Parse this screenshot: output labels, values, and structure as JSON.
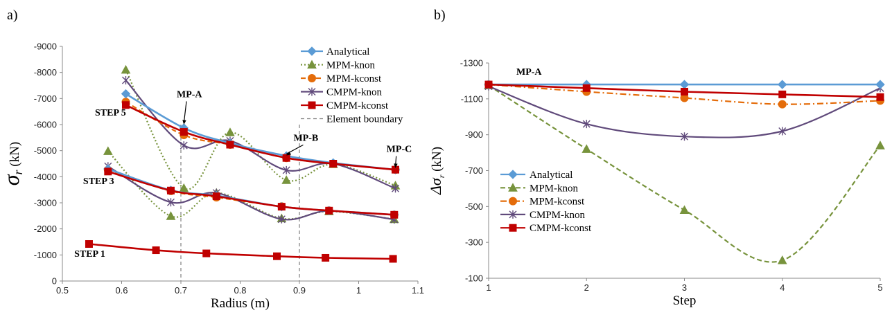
{
  "chart_data": [
    {
      "panel_label": "a)",
      "type": "line",
      "xlabel": "Radius (m)",
      "ylabel": "σr (kN)",
      "xlim": [
        0.5,
        1.1
      ],
      "xticks": [
        0.5,
        0.6,
        0.7,
        0.8,
        0.9,
        1,
        1.1
      ],
      "ylim": [
        0,
        -9000
      ],
      "yticks": [
        0,
        -1000,
        -2000,
        -3000,
        -4000,
        -5000,
        -6000,
        -7000,
        -8000,
        -9000
      ],
      "grid": false,
      "legend_position": "top-right",
      "legend": [
        {
          "label": "Analytical",
          "color": "#5b9bd5",
          "dash": "solid",
          "marker": "diamond"
        },
        {
          "label": "MPM-knon",
          "color": "#77933c",
          "dash": "dotted",
          "marker": "triangle"
        },
        {
          "label": "MPM-kconst",
          "color": "#e46c0a",
          "dash": "dash",
          "marker": "circle"
        },
        {
          "label": "CMPM-knon",
          "color": "#604a7b",
          "dash": "solid",
          "marker": "star"
        },
        {
          "label": "CMPM-kconst",
          "color": "#c00000",
          "dash": "solid",
          "marker": "square"
        },
        {
          "label": "Element boundary",
          "color": "#7f7f7f",
          "dash": "dash",
          "marker": "none"
        }
      ],
      "element_boundaries": [
        0.7,
        0.9
      ],
      "annotations": [
        {
          "text": "STEP 5",
          "x": 0.555,
          "y": -6350
        },
        {
          "text": "STEP 3",
          "x": 0.535,
          "y": -3720
        },
        {
          "text": "STEP 1",
          "x": 0.52,
          "y": -930
        },
        {
          "text": "MP-A",
          "x": 0.693,
          "y": -7050,
          "arrow_to": [
            0.705,
            -6000
          ]
        },
        {
          "text": "MP-B",
          "x": 0.89,
          "y": -5380,
          "arrow_to": [
            0.878,
            -4820
          ]
        },
        {
          "text": "MP-C",
          "x": 1.047,
          "y": -4950,
          "arrow_to": [
            1.062,
            -4330
          ]
        }
      ],
      "series": [
        {
          "name": "Analytical",
          "step": "STEP 5",
          "x": [
            0.607,
            0.705,
            0.783,
            0.878,
            0.957,
            1.062
          ],
          "y": [
            -7180,
            -5870,
            -5290,
            -4800,
            -4530,
            -4270
          ]
        },
        {
          "name": "MPM-knon",
          "step": "STEP 5",
          "x": [
            0.607,
            0.705,
            0.783,
            0.878,
            0.957,
            1.062
          ],
          "y": [
            -8100,
            -3560,
            -5700,
            -3870,
            -4480,
            -3660
          ]
        },
        {
          "name": "MPM-kconst",
          "step": "STEP 5",
          "x": [
            0.607,
            0.705,
            0.783,
            0.878,
            0.957,
            1.062
          ],
          "y": [
            -6870,
            -5600,
            -5230,
            -4720,
            -4500,
            -4270
          ]
        },
        {
          "name": "CMPM-knon",
          "step": "STEP 5",
          "x": [
            0.607,
            0.705,
            0.783,
            0.878,
            0.957,
            1.062
          ],
          "y": [
            -7700,
            -5200,
            -5380,
            -4250,
            -4500,
            -3550
          ]
        },
        {
          "name": "CMPM-kconst",
          "step": "STEP 5",
          "x": [
            0.607,
            0.705,
            0.783,
            0.878,
            0.957,
            1.062
          ],
          "y": [
            -6750,
            -5720,
            -5230,
            -4720,
            -4500,
            -4270
          ]
        },
        {
          "name": "Analytical",
          "step": "STEP 3",
          "x": [
            0.577,
            0.683,
            0.76,
            0.87,
            0.95,
            1.06
          ],
          "y": [
            -4300,
            -3480,
            -3280,
            -2850,
            -2700,
            -2540
          ]
        },
        {
          "name": "MPM-knon",
          "step": "STEP 3",
          "x": [
            0.577,
            0.683,
            0.76,
            0.87,
            0.95,
            1.06
          ],
          "y": [
            -4980,
            -2490,
            -3380,
            -2400,
            -2670,
            -2370
          ]
        },
        {
          "name": "MPM-kconst",
          "step": "STEP 3",
          "x": [
            0.577,
            0.683,
            0.76,
            0.87,
            0.95,
            1.06
          ],
          "y": [
            -4260,
            -3450,
            -3210,
            -2860,
            -2700,
            -2540
          ]
        },
        {
          "name": "CMPM-knon",
          "step": "STEP 3",
          "x": [
            0.577,
            0.683,
            0.76,
            0.87,
            0.95,
            1.06
          ],
          "y": [
            -4400,
            -3020,
            -3380,
            -2370,
            -2690,
            -2360
          ]
        },
        {
          "name": "CMPM-kconst",
          "step": "STEP 3",
          "x": [
            0.577,
            0.683,
            0.76,
            0.87,
            0.95,
            1.06
          ],
          "y": [
            -4200,
            -3470,
            -3250,
            -2850,
            -2700,
            -2540
          ]
        },
        {
          "name": "CMPM-kconst",
          "step": "STEP 1",
          "x": [
            0.545,
            0.658,
            0.743,
            0.862,
            0.944,
            1.058
          ],
          "y": [
            -1420,
            -1180,
            -1060,
            -950,
            -890,
            -850
          ]
        }
      ]
    },
    {
      "panel_label": "b)",
      "type": "line",
      "title": "MP-A",
      "xlabel": "Step",
      "ylabel": "Δσr (kN)",
      "xlim": [
        1,
        5
      ],
      "xticks": [
        1,
        2,
        3,
        4,
        5
      ],
      "ylim": [
        -100,
        -1300
      ],
      "yticks": [
        -100,
        -300,
        -500,
        -700,
        -900,
        -1100,
        -1300
      ],
      "grid": false,
      "legend_position": "lower-left",
      "series": [
        {
          "name": "Analytical",
          "color": "#5b9bd5",
          "dash": "solid",
          "marker": "diamond",
          "x": [
            1,
            2,
            3,
            4,
            5
          ],
          "y": [
            -1180,
            -1180,
            -1180,
            -1180,
            -1180
          ]
        },
        {
          "name": "MPM-knon",
          "color": "#77933c",
          "dash": "dash",
          "marker": "triangle",
          "x": [
            1,
            2,
            3,
            4,
            5
          ],
          "y": [
            -1175,
            -820,
            -480,
            -200,
            -840
          ]
        },
        {
          "name": "MPM-kconst",
          "color": "#e46c0a",
          "dash": "dashdot",
          "marker": "circle",
          "x": [
            1,
            2,
            3,
            4,
            5
          ],
          "y": [
            -1180,
            -1140,
            -1105,
            -1070,
            -1090
          ]
        },
        {
          "name": "CMPM-knon",
          "color": "#604a7b",
          "dash": "solid",
          "marker": "star",
          "x": [
            1,
            2,
            3,
            4,
            5
          ],
          "y": [
            -1170,
            -960,
            -890,
            -920,
            -1160
          ]
        },
        {
          "name": "CMPM-kconst",
          "color": "#c00000",
          "dash": "solid",
          "marker": "square",
          "x": [
            1,
            2,
            3,
            4,
            5
          ],
          "y": [
            -1180,
            -1160,
            -1140,
            -1125,
            -1110
          ]
        }
      ]
    }
  ]
}
